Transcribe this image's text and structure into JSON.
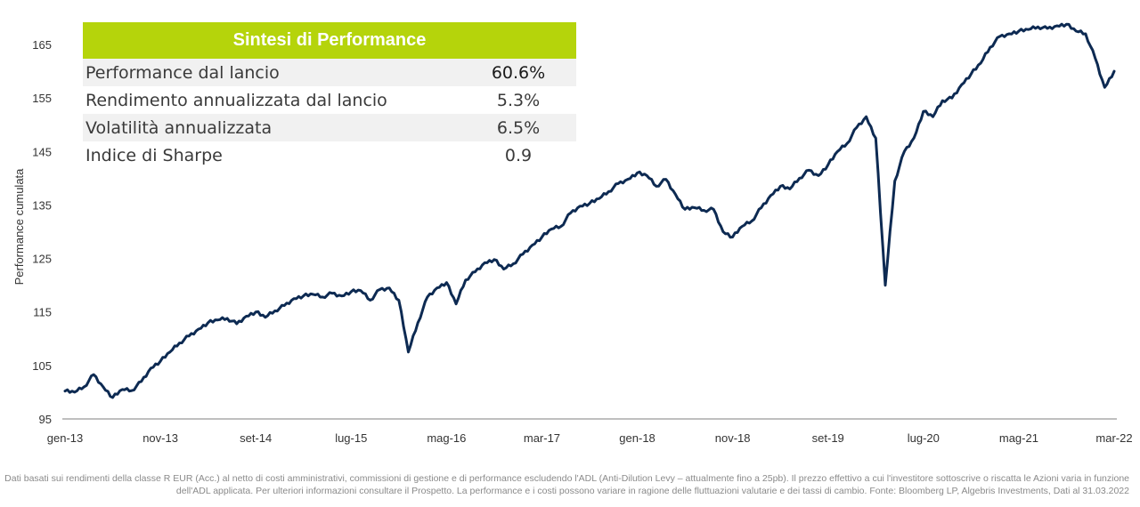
{
  "summary": {
    "title": "Sintesi di Performance",
    "rows": [
      {
        "label": "Performance dal lancio",
        "value": "60.6%"
      },
      {
        "label": "Rendimento annualizzata dal lancio",
        "value": "5.3%"
      },
      {
        "label": "Volatilità annualizzata",
        "value": "6.5%"
      },
      {
        "label": "Indice di Sharpe",
        "value": "0.9"
      }
    ]
  },
  "chart_data": {
    "type": "line",
    "xlabel": "",
    "ylabel": "Performance cumulata",
    "ylim": [
      95,
      170
    ],
    "xlim": [
      "2013-01",
      "2022-03"
    ],
    "yticks": [
      95,
      105,
      115,
      125,
      135,
      145,
      155,
      165
    ],
    "xticks": [
      "gen-13",
      "nov-13",
      "set-14",
      "lug-15",
      "mag-16",
      "mar-17",
      "gen-18",
      "nov-18",
      "set-19",
      "lug-20",
      "mag-21",
      "mar-22"
    ],
    "line_color": "#0d2a52",
    "series": [
      {
        "x": [
          "2013-01",
          "2013-02",
          "2013-03",
          "2013-04",
          "2013-05",
          "2013-06",
          "2013-07",
          "2013-08",
          "2013-09",
          "2013-10",
          "2013-11",
          "2013-12",
          "2014-01",
          "2014-02",
          "2014-03",
          "2014-04",
          "2014-05",
          "2014-06",
          "2014-07",
          "2014-08",
          "2014-09",
          "2014-10",
          "2014-11",
          "2014-12",
          "2015-01",
          "2015-02",
          "2015-03",
          "2015-04",
          "2015-05",
          "2015-06",
          "2015-07",
          "2015-08",
          "2015-09",
          "2015-10",
          "2015-11",
          "2015-12",
          "2016-01",
          "2016-02",
          "2016-03",
          "2016-04",
          "2016-05",
          "2016-06",
          "2016-07",
          "2016-08",
          "2016-09",
          "2016-10",
          "2016-11",
          "2016-12",
          "2017-01",
          "2017-02",
          "2017-03",
          "2017-04",
          "2017-05",
          "2017-06",
          "2017-07",
          "2017-08",
          "2017-09",
          "2017-10",
          "2017-11",
          "2017-12",
          "2018-01",
          "2018-02",
          "2018-03",
          "2018-04",
          "2018-05",
          "2018-06",
          "2018-07",
          "2018-08",
          "2018-09",
          "2018-10",
          "2018-11",
          "2018-12",
          "2019-01",
          "2019-02",
          "2019-03",
          "2019-04",
          "2019-05",
          "2019-06",
          "2019-07",
          "2019-08",
          "2019-09",
          "2019-10",
          "2019-11",
          "2019-12",
          "2020-01",
          "2020-02",
          "2020-03",
          "2020-04",
          "2020-05",
          "2020-06",
          "2020-07",
          "2020-08",
          "2020-09",
          "2020-10",
          "2020-11",
          "2020-12",
          "2021-01",
          "2021-02",
          "2021-03",
          "2021-04",
          "2021-05",
          "2021-06",
          "2021-07",
          "2021-08",
          "2021-09",
          "2021-10",
          "2021-11",
          "2021-12",
          "2022-01",
          "2022-02",
          "2022-03"
        ],
        "values": [
          100.2,
          100.0,
          101.0,
          103.3,
          101.0,
          99.0,
          100.5,
          100.3,
          102.0,
          104.5,
          105.8,
          107.5,
          109.2,
          110.5,
          111.8,
          113.0,
          113.5,
          113.8,
          112.8,
          114.2,
          115.0,
          114.0,
          115.2,
          116.2,
          117.5,
          118.0,
          118.3,
          117.8,
          118.5,
          118.0,
          118.8,
          119.0,
          117.2,
          119.2,
          119.5,
          117.2,
          107.5,
          113.0,
          117.8,
          119.5,
          120.5,
          116.5,
          121.0,
          122.5,
          124.2,
          124.8,
          123.0,
          124.0,
          125.8,
          127.5,
          129.0,
          130.5,
          131.0,
          133.5,
          134.8,
          135.3,
          136.2,
          137.5,
          139.0,
          139.8,
          141.0,
          140.5,
          138.5,
          139.8,
          137.0,
          134.2,
          134.5,
          134.0,
          134.2,
          130.0,
          129.0,
          131.0,
          132.0,
          134.5,
          136.8,
          138.5,
          138.0,
          140.0,
          141.5,
          140.5,
          142.5,
          145.0,
          146.5,
          149.5,
          151.5,
          147.5,
          120.0,
          139.5,
          145.0,
          147.5,
          152.5,
          151.5,
          154.5,
          155.0,
          157.5,
          159.5,
          161.5,
          164.5,
          166.5,
          167.0,
          167.5,
          167.8,
          168.3,
          168.0,
          168.5,
          168.8,
          167.5,
          167.0,
          162.5,
          157.0,
          160.0
        ]
      }
    ]
  },
  "footnote": "Dati basati sui rendimenti della classe R EUR (Acc.) al netto di costi amministrativi, commissioni di gestione e di performance escludendo l'ADL (Anti-Dilution Levy – attualmente fino a 25pb). Il prezzo effettivo a cui l'investitore sottoscrive o riscatta le Azioni varia in funzione dell'ADL applicata. Per ulteriori informazioni consultare il Prospetto. La performance e i costi possono variare in ragione delle fluttuazioni valutarie e dei tassi di cambio. Fonte: Bloomberg LP, Algebris Investments, Dati al 31.03.2022"
}
